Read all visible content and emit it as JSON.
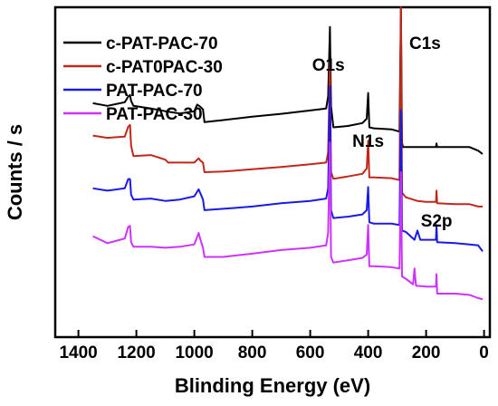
{
  "chart_data": {
    "type": "line",
    "title": "",
    "xlabel": "Blinding Energy (eV)",
    "ylabel": "Counts / s",
    "xlim": [
      1480,
      -20
    ],
    "x_reversed": true,
    "xticks": [
      1400,
      1200,
      1000,
      800,
      600,
      400,
      200,
      0
    ],
    "xtick_labels": [
      "1400",
      "1200",
      "1000",
      "800",
      "600",
      "400",
      "200",
      "0"
    ],
    "yticks_shown": false,
    "ylim": [
      0,
      100
    ],
    "grid": false,
    "legend_position": "top-left",
    "annotations": [
      {
        "text": "O1s",
        "x": 531
      },
      {
        "text": "N1s",
        "x": 400
      },
      {
        "text": "C1s",
        "x": 285
      },
      {
        "text": "S2p",
        "x": 164
      }
    ],
    "series": [
      {
        "name": "c-PAT-PAC-70",
        "color": "#000000",
        "points": [
          [
            1350,
            70.9
          ],
          [
            1300,
            70.1
          ],
          [
            1240,
            71.2
          ],
          [
            1228,
            72.9
          ],
          [
            1222,
            73.4
          ],
          [
            1218,
            71.6
          ],
          [
            1210,
            70.1
          ],
          [
            1150,
            69.3
          ],
          [
            1100,
            68.5
          ],
          [
            1050,
            67.8
          ],
          [
            1000,
            68.5
          ],
          [
            990,
            70.5
          ],
          [
            980,
            69.9
          ],
          [
            970,
            69.0
          ],
          [
            965,
            65.2
          ],
          [
            900,
            65.8
          ],
          [
            800,
            66.8
          ],
          [
            700,
            67.7
          ],
          [
            600,
            68.7
          ],
          [
            545,
            69.3
          ],
          [
            538,
            73.0
          ],
          [
            532,
            94.0
          ],
          [
            528,
            70.0
          ],
          [
            520,
            63.6
          ],
          [
            470,
            64.0
          ],
          [
            420,
            64.9
          ],
          [
            405,
            66.2
          ],
          [
            400,
            74.0
          ],
          [
            396,
            63.6
          ],
          [
            380,
            63.3
          ],
          [
            320,
            63.0
          ],
          [
            292,
            62.3
          ],
          [
            287,
            100.0
          ],
          [
            283,
            59.0
          ],
          [
            280,
            57.6
          ],
          [
            260,
            57.6
          ],
          [
            200,
            57.6
          ],
          [
            166,
            57.6
          ],
          [
            164,
            58.7
          ],
          [
            162,
            57.6
          ],
          [
            100,
            57.6
          ],
          [
            50,
            57.6
          ],
          [
            20,
            56.5
          ],
          [
            5,
            55.5
          ]
        ]
      },
      {
        "name": "c-PAT0PAC-30",
        "color": "#c0281a",
        "points": [
          [
            1350,
            61.1
          ],
          [
            1300,
            60.4
          ],
          [
            1240,
            60.8
          ],
          [
            1228,
            63.8
          ],
          [
            1222,
            64.3
          ],
          [
            1218,
            58.0
          ],
          [
            1210,
            54.9
          ],
          [
            1150,
            55.2
          ],
          [
            1100,
            53.8
          ],
          [
            1090,
            52.9
          ],
          [
            1050,
            52.9
          ],
          [
            1000,
            52.9
          ],
          [
            985,
            54.2
          ],
          [
            980,
            53.6
          ],
          [
            970,
            52.9
          ],
          [
            965,
            50.0
          ],
          [
            900,
            50.2
          ],
          [
            800,
            50.9
          ],
          [
            700,
            51.6
          ],
          [
            600,
            52.4
          ],
          [
            545,
            52.9
          ],
          [
            538,
            56.0
          ],
          [
            532,
            83.3
          ],
          [
            528,
            50.0
          ],
          [
            520,
            48.0
          ],
          [
            470,
            48.7
          ],
          [
            420,
            49.5
          ],
          [
            405,
            51.1
          ],
          [
            400,
            59.5
          ],
          [
            396,
            48.4
          ],
          [
            380,
            48.4
          ],
          [
            320,
            48.2
          ],
          [
            292,
            47.6
          ],
          [
            287,
            100.0
          ],
          [
            283,
            43.8
          ],
          [
            270,
            42.4
          ],
          [
            230,
            41.3
          ],
          [
            200,
            41.0
          ],
          [
            166,
            41.0
          ],
          [
            164,
            44.4
          ],
          [
            162,
            40.6
          ],
          [
            100,
            40.3
          ],
          [
            50,
            40.3
          ],
          [
            20,
            39.6
          ],
          [
            5,
            39.6
          ]
        ]
      },
      {
        "name": "PAT-PAC-70",
        "color": "#1a1ae6",
        "points": [
          [
            1350,
            45.1
          ],
          [
            1300,
            44.4
          ],
          [
            1240,
            45.1
          ],
          [
            1228,
            47.9
          ],
          [
            1222,
            47.9
          ],
          [
            1218,
            43.1
          ],
          [
            1210,
            41.7
          ],
          [
            1150,
            42.0
          ],
          [
            1100,
            41.3
          ],
          [
            1050,
            41.7
          ],
          [
            1000,
            42.7
          ],
          [
            985,
            44.8
          ],
          [
            980,
            43.8
          ],
          [
            970,
            41.7
          ],
          [
            965,
            38.5
          ],
          [
            900,
            38.9
          ],
          [
            800,
            39.6
          ],
          [
            700,
            40.6
          ],
          [
            600,
            41.3
          ],
          [
            545,
            42.0
          ],
          [
            538,
            45.1
          ],
          [
            532,
            76.0
          ],
          [
            528,
            38.5
          ],
          [
            520,
            36.1
          ],
          [
            470,
            36.5
          ],
          [
            420,
            37.2
          ],
          [
            405,
            38.5
          ],
          [
            400,
            45.5
          ],
          [
            396,
            34.8
          ],
          [
            380,
            34.4
          ],
          [
            320,
            34.4
          ],
          [
            292,
            34.0
          ],
          [
            287,
            68.8
          ],
          [
            283,
            32.3
          ],
          [
            270,
            31.9
          ],
          [
            240,
            29.5
          ],
          [
            230,
            32.3
          ],
          [
            220,
            29.5
          ],
          [
            200,
            29.5
          ],
          [
            166,
            29.5
          ],
          [
            164,
            34.0
          ],
          [
            162,
            28.8
          ],
          [
            100,
            28.5
          ],
          [
            50,
            28.1
          ],
          [
            20,
            27.8
          ],
          [
            5,
            26.0
          ]
        ]
      },
      {
        "name": "PAT-PAC-30",
        "color": "#cc33ff",
        "points": [
          [
            1350,
            30.6
          ],
          [
            1300,
            28.5
          ],
          [
            1240,
            29.9
          ],
          [
            1228,
            33.4
          ],
          [
            1222,
            33.7
          ],
          [
            1218,
            28.8
          ],
          [
            1210,
            27.4
          ],
          [
            1150,
            27.4
          ],
          [
            1100,
            27.1
          ],
          [
            1050,
            27.4
          ],
          [
            1000,
            28.1
          ],
          [
            985,
            31.6
          ],
          [
            980,
            29.9
          ],
          [
            970,
            27.1
          ],
          [
            965,
            24.3
          ],
          [
            900,
            24.3
          ],
          [
            800,
            25.3
          ],
          [
            700,
            26.4
          ],
          [
            600,
            27.1
          ],
          [
            545,
            27.8
          ],
          [
            538,
            31.6
          ],
          [
            532,
            59.0
          ],
          [
            528,
            24.3
          ],
          [
            520,
            22.6
          ],
          [
            470,
            23.3
          ],
          [
            420,
            24.0
          ],
          [
            405,
            25.0
          ],
          [
            400,
            34.0
          ],
          [
            396,
            21.5
          ],
          [
            380,
            21.5
          ],
          [
            320,
            21.2
          ],
          [
            292,
            20.8
          ],
          [
            287,
            50.0
          ],
          [
            283,
            18.4
          ],
          [
            270,
            17.7
          ],
          [
            245,
            16.0
          ],
          [
            240,
            20.8
          ],
          [
            235,
            15.6
          ],
          [
            200,
            15.3
          ],
          [
            166,
            15.3
          ],
          [
            164,
            19.1
          ],
          [
            162,
            13.2
          ],
          [
            100,
            13.2
          ],
          [
            50,
            12.8
          ],
          [
            20,
            11.8
          ],
          [
            5,
            11.5
          ]
        ]
      }
    ]
  }
}
